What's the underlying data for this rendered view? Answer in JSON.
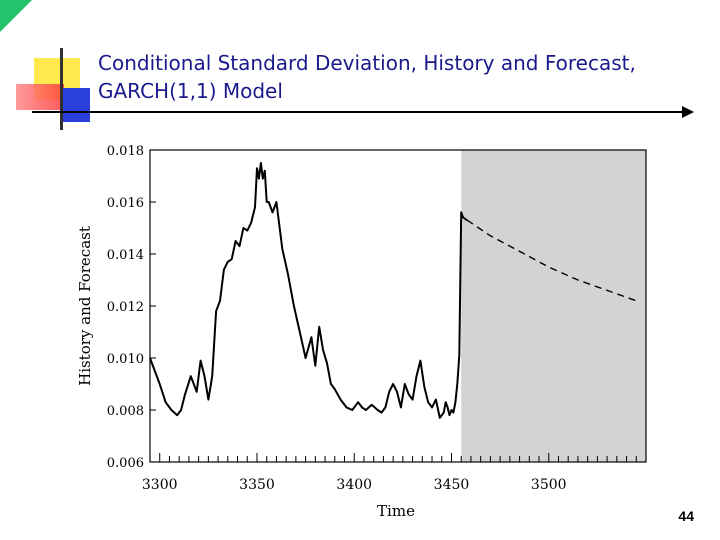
{
  "slide": {
    "title_line1": "Conditional Standard Deviation, History and Forecast,",
    "title_line2": "GARCH(1,1) Model",
    "page_number": "44",
    "title_color": "#1a1a8c"
  },
  "chart_data": {
    "type": "line",
    "title": "",
    "xlabel": "Time",
    "ylabel": "History and Forecast",
    "xlim": [
      3295,
      3550
    ],
    "ylim": [
      0.006,
      0.018
    ],
    "xticks": [
      3300,
      3350,
      3400,
      3450,
      3500
    ],
    "xtick_labels": [
      "3300",
      "3350",
      "3400",
      "3450",
      "3500"
    ],
    "yticks": [
      0.006,
      0.008,
      0.01,
      0.012,
      0.014,
      0.016,
      0.018
    ],
    "ytick_labels": [
      "0.006",
      "0.008",
      "0.010",
      "0.012",
      "0.014",
      "0.016",
      "0.018"
    ],
    "forecast_start": 3455,
    "series": [
      {
        "style": "solid",
        "x": [
          3295,
          3298,
          3300,
          3303,
          3306,
          3309,
          3311,
          3313,
          3316,
          3319,
          3321,
          3323,
          3325,
          3327,
          3329,
          3331,
          3333,
          3335,
          3337,
          3339,
          3341,
          3343,
          3345,
          3347,
          3349,
          3350,
          3351,
          3352,
          3353,
          3354,
          3355,
          3356,
          3358,
          3360,
          3363,
          3366,
          3369,
          3372,
          3375,
          3378,
          3380,
          3382,
          3384,
          3386,
          3388,
          3390,
          3393,
          3396,
          3399,
          3402,
          3404,
          3406,
          3409,
          3412,
          3414,
          3416,
          3418,
          3420,
          3422,
          3424,
          3426,
          3428,
          3430,
          3432,
          3434,
          3436,
          3438,
          3440,
          3442,
          3444,
          3446,
          3447,
          3448,
          3449,
          3450,
          3451,
          3452,
          3453,
          3454
        ],
        "values": [
          0.01,
          0.0094,
          0.009,
          0.0083,
          0.008,
          0.0078,
          0.008,
          0.0086,
          0.0093,
          0.0087,
          0.0099,
          0.0093,
          0.0084,
          0.0093,
          0.0118,
          0.0122,
          0.0134,
          0.0137,
          0.0138,
          0.0145,
          0.0143,
          0.015,
          0.0149,
          0.0152,
          0.0158,
          0.0173,
          0.0169,
          0.0175,
          0.0169,
          0.0172,
          0.016,
          0.016,
          0.0156,
          0.016,
          0.0142,
          0.0132,
          0.012,
          0.011,
          0.01,
          0.0108,
          0.0097,
          0.0112,
          0.0103,
          0.0098,
          0.009,
          0.0088,
          0.0084,
          0.0081,
          0.008,
          0.0083,
          0.0081,
          0.008,
          0.0082,
          0.008,
          0.0079,
          0.0081,
          0.0087,
          0.009,
          0.0087,
          0.0081,
          0.009,
          0.0086,
          0.0084,
          0.0093,
          0.0099,
          0.0089,
          0.0083,
          0.0081,
          0.0084,
          0.0077,
          0.0079,
          0.0083,
          0.0081,
          0.0078,
          0.008,
          0.0079,
          0.0083,
          0.009,
          0.0101
        ]
      },
      {
        "style": "solid",
        "x": [
          3454,
          3455,
          3456,
          3458
        ],
        "values": [
          0.0101,
          0.0156,
          0.0154,
          0.0153
        ]
      },
      {
        "style": "dashed",
        "x": [
          3458,
          3470,
          3485,
          3500,
          3515,
          3530,
          3545
        ],
        "values": [
          0.0153,
          0.0147,
          0.0141,
          0.0135,
          0.013,
          0.0126,
          0.0122
        ]
      }
    ]
  }
}
